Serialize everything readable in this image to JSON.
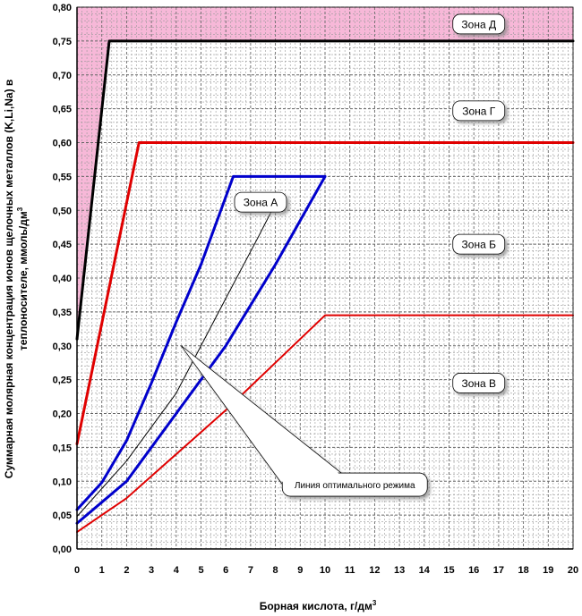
{
  "chart_data": {
    "type": "line",
    "xlabel": "Борная кислота, г/дм",
    "xlabel_sup": "3",
    "ylabel_line1": "Суммарная молярная концентрация ионов щелочных металлов (K,Li,Na) в",
    "ylabel_line2": "теплоносителе, ммоль/дм",
    "ylabel_sup": "3",
    "xlim": [
      0,
      20
    ],
    "ylim": [
      0,
      0.8
    ],
    "x_ticks": [
      "0",
      "1",
      "2",
      "3",
      "4",
      "5",
      "6",
      "7",
      "8",
      "9",
      "10",
      "11",
      "12",
      "13",
      "14",
      "15",
      "16",
      "17",
      "18",
      "19",
      "20"
    ],
    "y_ticks": [
      "0,00",
      "0,05",
      "0,10",
      "0,15",
      "0,20",
      "0,25",
      "0,30",
      "0,35",
      "0,40",
      "0,45",
      "0,50",
      "0,55",
      "0,60",
      "0,65",
      "0,70",
      "0,75",
      "0,80"
    ],
    "grid": true,
    "series": [
      {
        "color": "#000000",
        "width": 3,
        "points": [
          [
            0,
            0.31
          ],
          [
            1.3,
            0.75
          ],
          [
            20,
            0.75
          ]
        ]
      },
      {
        "color": "#e00000",
        "width": 3,
        "points": [
          [
            0,
            0.155
          ],
          [
            2.5,
            0.6
          ],
          [
            20,
            0.6
          ]
        ]
      },
      {
        "color": "#e00000",
        "width": 2,
        "points": [
          [
            0,
            0.025
          ],
          [
            2,
            0.075
          ],
          [
            4,
            0.14
          ],
          [
            6,
            0.205
          ],
          [
            8,
            0.275
          ],
          [
            10,
            0.345
          ],
          [
            20,
            0.345
          ]
        ]
      },
      {
        "color": "#0000cc",
        "width": 3,
        "points": [
          [
            0,
            0.058
          ],
          [
            1,
            0.098
          ],
          [
            2,
            0.16
          ],
          [
            3,
            0.245
          ],
          [
            4,
            0.335
          ],
          [
            5,
            0.42
          ],
          [
            6.3,
            0.55
          ],
          [
            10,
            0.55
          ]
        ]
      },
      {
        "color": "#0000cc",
        "width": 3,
        "points": [
          [
            0,
            0.038
          ],
          [
            2,
            0.1
          ],
          [
            4,
            0.2
          ],
          [
            6,
            0.3
          ],
          [
            8,
            0.42
          ],
          [
            10,
            0.55
          ]
        ]
      },
      {
        "color": "#000000",
        "width": 1,
        "points": [
          [
            0,
            0.048
          ],
          [
            2,
            0.13
          ],
          [
            4,
            0.23
          ],
          [
            6,
            0.37
          ],
          [
            7.3,
            0.46
          ],
          [
            8,
            0.51
          ]
        ]
      }
    ],
    "shaded_region": {
      "color": "#f7b8d8",
      "points": [
        [
          0,
          0.31
        ],
        [
          1.3,
          0.75
        ],
        [
          20,
          0.75
        ],
        [
          20,
          0.8
        ],
        [
          0,
          0.8
        ]
      ]
    },
    "zones": [
      {
        "label": "Зона Д",
        "x": 16.2,
        "y": 0.775
      },
      {
        "label": "Зона Г",
        "x": 16.2,
        "y": 0.647
      },
      {
        "label": "Зона А",
        "x": 7.4,
        "y": 0.512
      },
      {
        "label": "Зона Б",
        "x": 16.2,
        "y": 0.45
      },
      {
        "label": "Зона В",
        "x": 16.2,
        "y": 0.245
      }
    ],
    "callout": {
      "label": "Линия оптимального режима",
      "target": [
        4.2,
        0.3
      ],
      "box": [
        11.2,
        0.095
      ]
    }
  }
}
